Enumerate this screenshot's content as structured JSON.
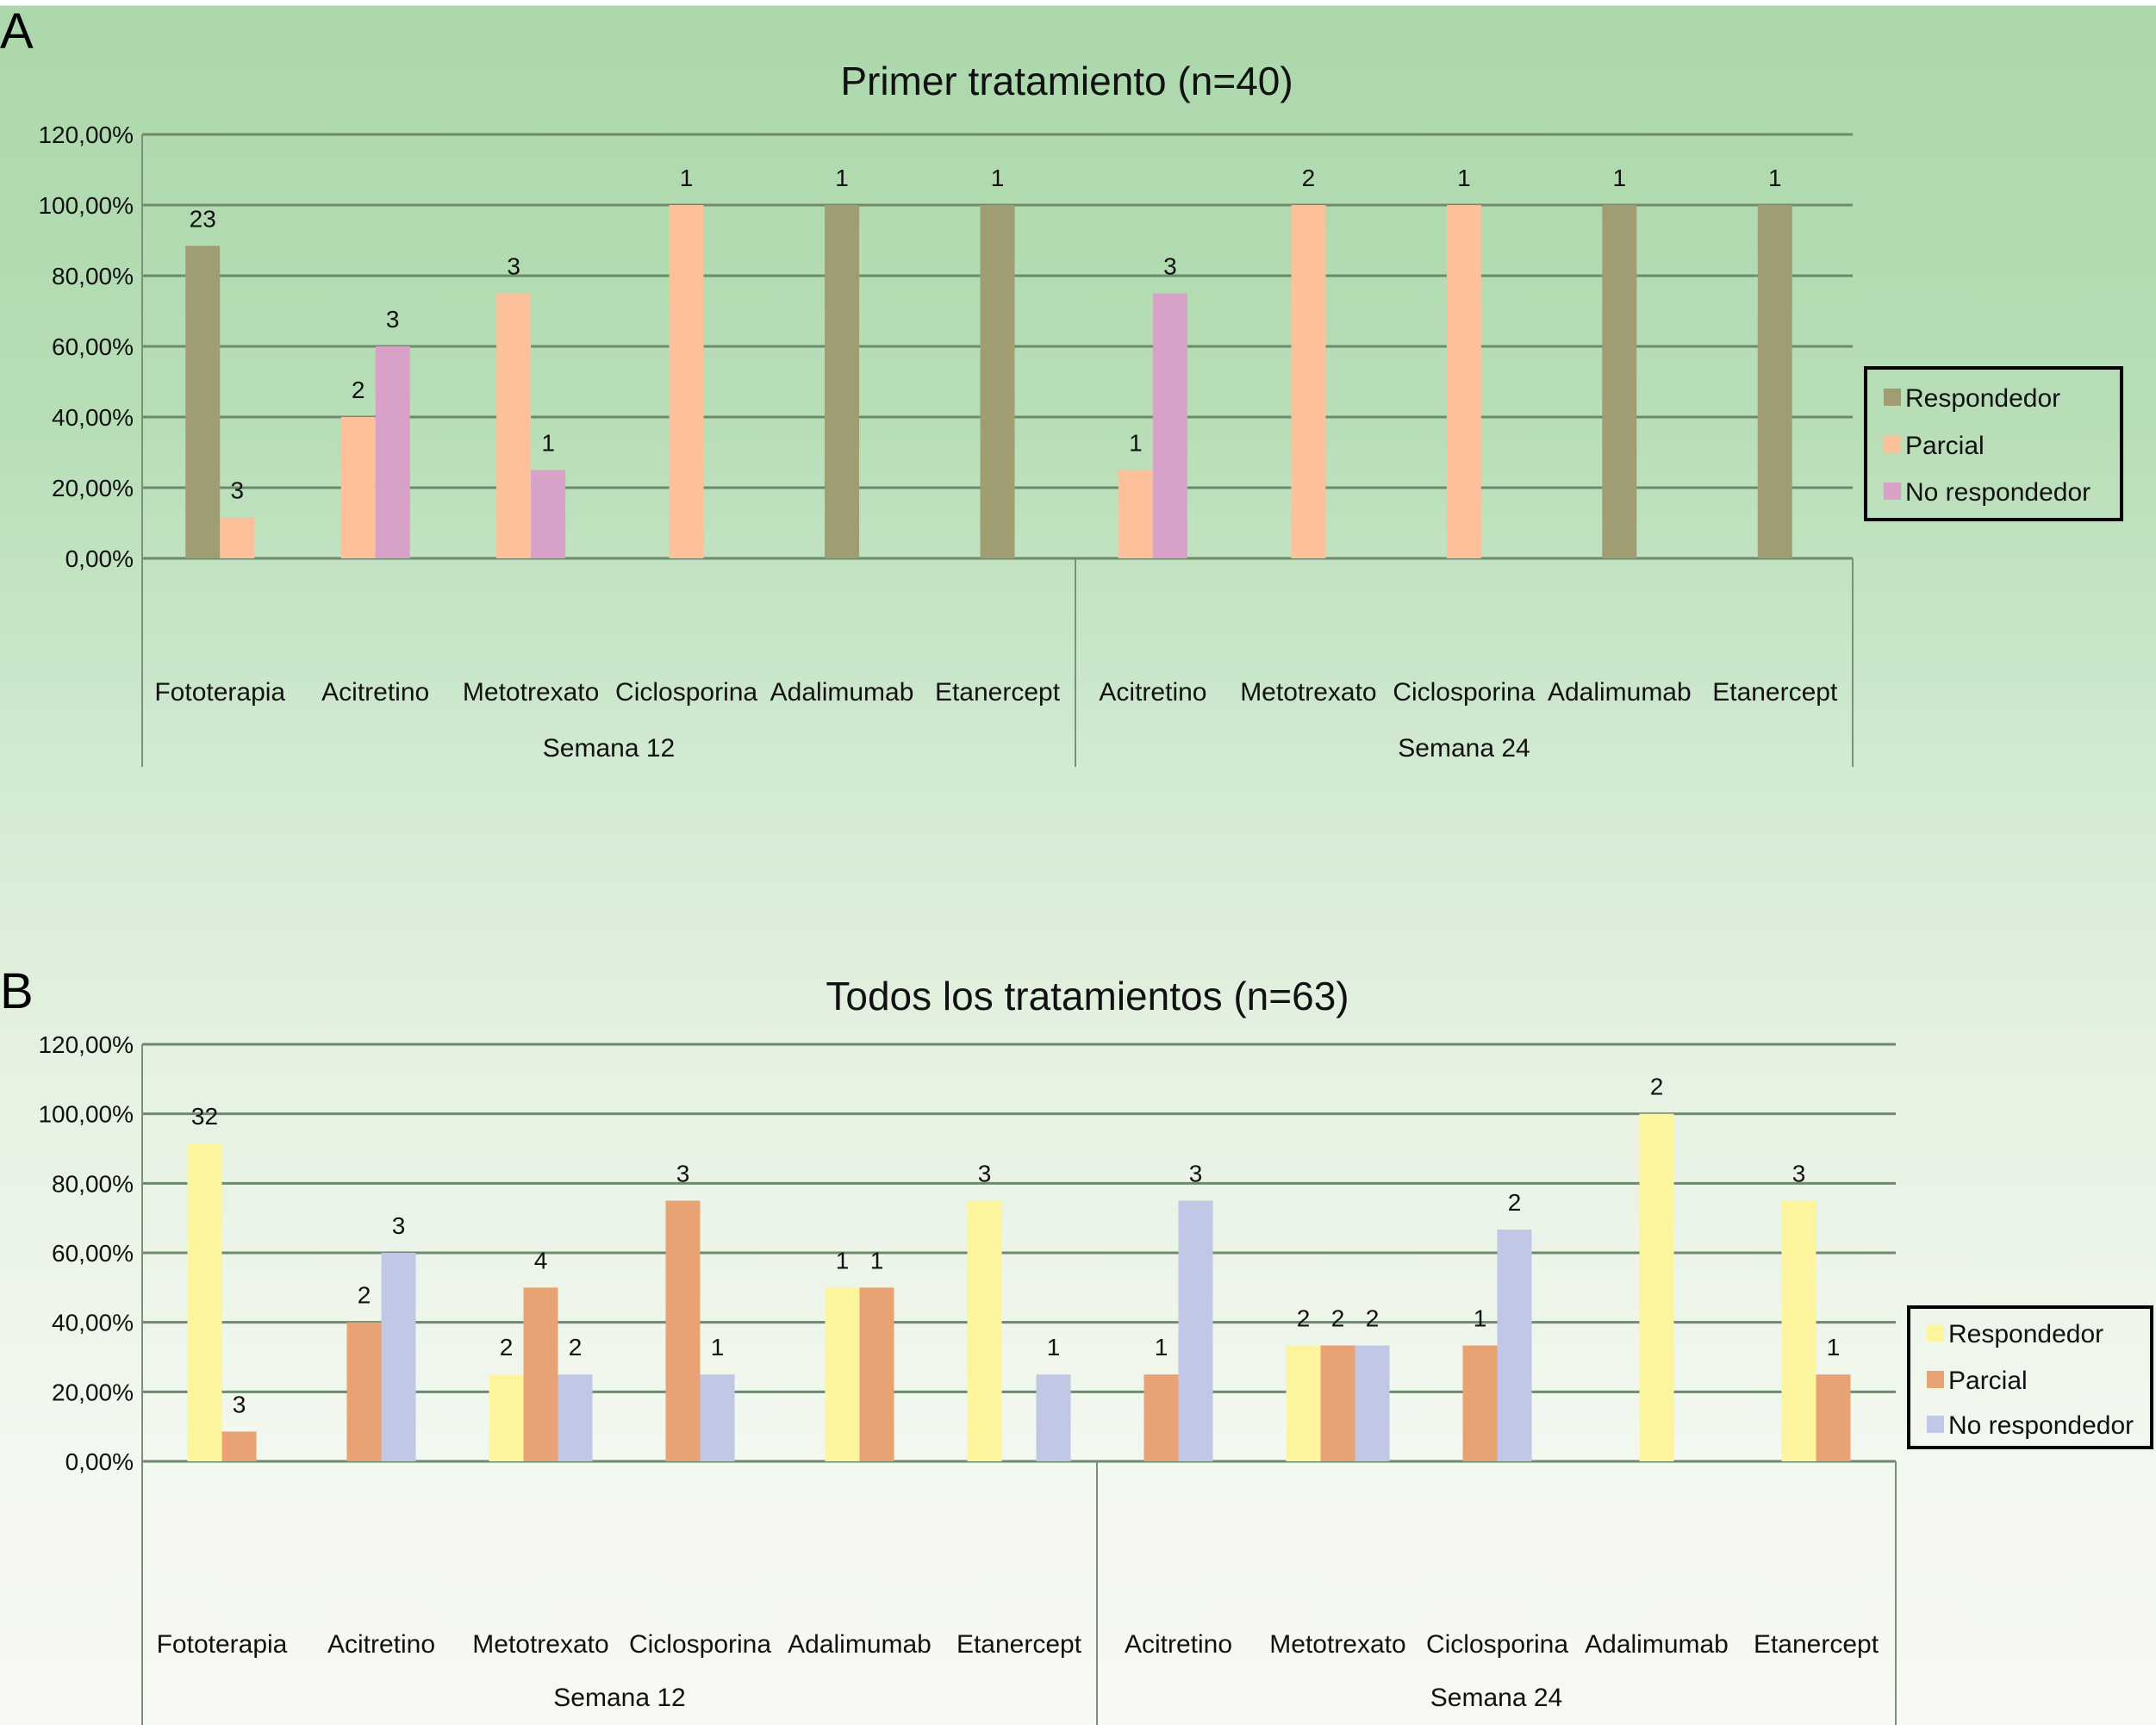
{
  "chart_data": [
    {
      "panel": "A",
      "type": "bar",
      "title": "Primer tratamiento (n=40)",
      "xlabel": "",
      "ylabel": "",
      "ylim": [
        0,
        120
      ],
      "yticks": [
        "0,00%",
        "20,00%",
        "40,00%",
        "60,00%",
        "80,00%",
        "100,00%",
        "120,00%"
      ],
      "grid": true,
      "legend_position": "right",
      "groups": [
        {
          "label": "Semana 12",
          "categories": [
            "Fototerapia",
            "Acitretino",
            "Metotrexato",
            "Ciclosporina",
            "Adalimumab",
            "Etanercept"
          ]
        },
        {
          "label": "Semana 24",
          "categories": [
            "Acitretino",
            "Metotrexato",
            "Ciclosporina",
            "Adalimumab",
            "Etanercept"
          ]
        }
      ],
      "categories": [
        "Fototerapia",
        "Acitretino",
        "Metotrexato",
        "Ciclosporina",
        "Adalimumab",
        "Etanercept",
        "Acitretino",
        "Metotrexato",
        "Ciclosporina",
        "Adalimumab",
        "Etanercept"
      ],
      "series": [
        {
          "name": "Respondedor",
          "color": "#a19d72",
          "values": [
            88.46,
            null,
            null,
            null,
            100,
            100,
            null,
            null,
            null,
            100,
            100
          ],
          "labels": [
            "23",
            null,
            null,
            null,
            "1",
            "1",
            null,
            null,
            null,
            "1",
            "1"
          ]
        },
        {
          "name": "Parcial",
          "color": "#fcc19a",
          "values": [
            11.54,
            40,
            75,
            100,
            null,
            null,
            25,
            100,
            100,
            null,
            null
          ],
          "labels": [
            "3",
            "2",
            "3",
            "1",
            null,
            null,
            "1",
            "2",
            "1",
            null,
            null
          ]
        },
        {
          "name": "No respondedor",
          "color": "#d8a2c8",
          "values": [
            null,
            60,
            25,
            null,
            null,
            null,
            75,
            null,
            null,
            null,
            null
          ],
          "labels": [
            null,
            "3",
            "1",
            null,
            null,
            null,
            "3",
            null,
            null,
            null,
            null
          ]
        }
      ]
    },
    {
      "panel": "B",
      "type": "bar",
      "title": "Todos los tratamientos (n=63)",
      "xlabel": "",
      "ylabel": "",
      "ylim": [
        0,
        120
      ],
      "yticks": [
        "0,00%",
        "20,00%",
        "40,00%",
        "60,00%",
        "80,00%",
        "100,00%",
        "120,00%"
      ],
      "grid": true,
      "legend_position": "right",
      "groups": [
        {
          "label": "Semana 12",
          "categories": [
            "Fototerapia",
            "Acitretino",
            "Metotrexato",
            "Ciclosporina",
            "Adalimumab",
            "Etanercept"
          ]
        },
        {
          "label": "Semana 24",
          "categories": [
            "Acitretino",
            "Metotrexato",
            "Ciclosporina",
            "Adalimumab",
            "Etanercept"
          ]
        }
      ],
      "categories": [
        "Fototerapia",
        "Acitretino",
        "Metotrexato",
        "Ciclosporina",
        "Adalimumab",
        "Etanercept",
        "Acitretino",
        "Metotrexato",
        "Ciclosporina",
        "Adalimumab",
        "Etanercept"
      ],
      "series": [
        {
          "name": "Respondedor",
          "color": "#fdf59e",
          "values": [
            91.43,
            null,
            25,
            null,
            50,
            75,
            null,
            33.33,
            null,
            100,
            75
          ],
          "labels": [
            "32",
            null,
            "2",
            null,
            "1",
            "3",
            null,
            "2",
            null,
            "2",
            "3"
          ]
        },
        {
          "name": "Parcial",
          "color": "#e8a273",
          "values": [
            8.57,
            40,
            50,
            75,
            50,
            null,
            25,
            33.33,
            33.33,
            null,
            25
          ],
          "labels": [
            "3",
            "2",
            "4",
            "3",
            "1",
            null,
            "1",
            "2",
            "1",
            null,
            "1"
          ]
        },
        {
          "name": "No respondedor",
          "color": "#c0c8e6",
          "values": [
            null,
            60,
            25,
            25,
            null,
            25,
            75,
            33.33,
            66.67,
            null,
            null
          ],
          "labels": [
            null,
            "3",
            "2",
            "1",
            null,
            "1",
            "3",
            "2",
            "2",
            null,
            null
          ]
        }
      ]
    }
  ]
}
